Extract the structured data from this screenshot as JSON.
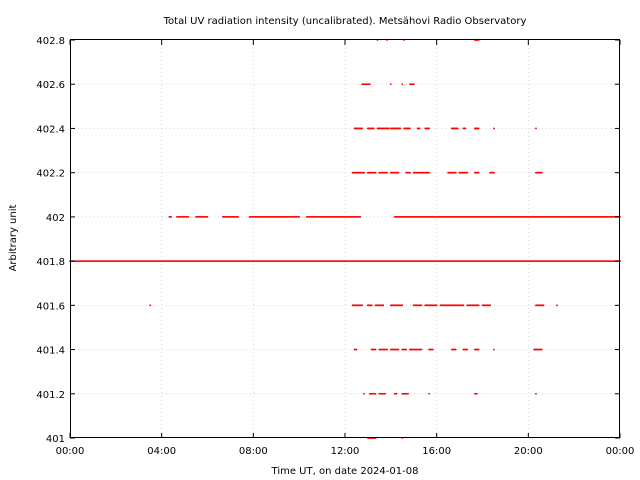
{
  "chart_data": {
    "type": "scatter",
    "title": "Total UV radiation intensity (uncalibrated). Metsähovi Radio Observatory",
    "xlabel": "Time UT, on date 2024-01-08",
    "ylabel": "Arbitrary unit",
    "xlim": [
      "00:00",
      "24:00"
    ],
    "ylim": [
      401,
      402.8
    ],
    "x_ticks": [
      "00:00",
      "04:00",
      "08:00",
      "12:00",
      "16:00",
      "20:00",
      "00:00"
    ],
    "y_ticks": [
      "401",
      "401.2",
      "401.4",
      "401.6",
      "401.8",
      "402",
      "402.2",
      "402.4",
      "402.6",
      "402.8"
    ],
    "grid": true,
    "marker_color": "#ff0000",
    "series": [
      {
        "levels": [
          {
            "y": 401.8,
            "x": [
              [
                "00:00",
                "24:00"
              ]
            ]
          },
          {
            "y": 402.0,
            "x": [
              [
                "04:20",
                "04:25"
              ],
              [
                "04:40",
                "05:10"
              ],
              [
                "05:30",
                "06:00"
              ],
              [
                "06:40",
                "07:20"
              ],
              [
                "07:50",
                "10:00"
              ],
              [
                "10:20",
                "12:40"
              ],
              [
                "14:10",
                "24:00"
              ]
            ]
          },
          {
            "y": 401.6,
            "x": [
              "03:30",
              [
                "12:20",
                "12:45"
              ],
              [
                "13:00",
                "13:10"
              ],
              [
                "13:20",
                "13:40"
              ],
              [
                "14:00",
                "14:30"
              ],
              [
                "15:00",
                "15:20"
              ],
              [
                "15:30",
                "16:00"
              ],
              [
                "16:10",
                "17:10"
              ],
              [
                "17:20",
                "17:50"
              ],
              [
                "18:00",
                "18:20"
              ],
              [
                "20:20",
                "20:40"
              ],
              "21:15"
            ]
          },
          {
            "y": 402.2,
            "x": [
              [
                "12:20",
                "12:50"
              ],
              [
                "13:00",
                "13:20"
              ],
              [
                "13:30",
                "13:50"
              ],
              [
                "14:00",
                "14:20"
              ],
              [
                "14:40",
                "14:50"
              ],
              [
                "15:00",
                "15:40"
              ],
              [
                "16:30",
                "16:50"
              ],
              [
                "17:00",
                "17:20"
              ],
              [
                "17:40",
                "17:50"
              ],
              [
                "18:20",
                "18:30"
              ],
              [
                "20:20",
                "20:35"
              ]
            ]
          },
          {
            "y": 401.4,
            "x": [
              [
                "12:25",
                "12:30"
              ],
              [
                "13:10",
                "13:20"
              ],
              [
                "13:30",
                "13:50"
              ],
              [
                "14:00",
                "14:20"
              ],
              [
                "14:30",
                "14:40"
              ],
              [
                "14:50",
                "15:20"
              ],
              [
                "15:40",
                "15:50"
              ],
              [
                "16:40",
                "16:50"
              ],
              [
                "17:10",
                "17:20"
              ],
              [
                "17:40",
                "17:50"
              ],
              "18:30",
              [
                "20:15",
                "20:35"
              ]
            ]
          },
          {
            "y": 402.4,
            "x": [
              [
                "12:25",
                "12:45"
              ],
              [
                "13:00",
                "13:15"
              ],
              [
                "13:25",
                "13:55"
              ],
              [
                "14:00",
                "14:25"
              ],
              [
                "14:35",
                "14:50"
              ],
              [
                "15:10",
                "15:15"
              ],
              [
                "15:30",
                "15:40"
              ],
              [
                "16:40",
                "16:55"
              ],
              [
                "17:10",
                "17:15"
              ],
              [
                "17:40",
                "17:50"
              ],
              "18:30",
              "20:20"
            ]
          },
          {
            "y": 402.6,
            "x": [
              [
                "12:45",
                "13:05"
              ],
              "14:00",
              "14:30",
              [
                "14:50",
                "15:00"
              ]
            ]
          },
          {
            "y": 401.2,
            "x": [
              "12:50",
              [
                "13:05",
                "13:20"
              ],
              [
                "13:30",
                "13:45"
              ],
              [
                "14:10",
                "14:15"
              ],
              [
                "14:30",
                "14:45"
              ],
              "15:40",
              [
                "17:40",
                "17:45"
              ],
              "20:20"
            ]
          },
          {
            "y": 402.8,
            "x": [
              "13:25",
              "13:50",
              "14:35",
              [
                "17:40",
                "17:50"
              ]
            ]
          },
          {
            "y": 401.0,
            "x": [
              [
                "13:00",
                "13:20"
              ],
              "14:30"
            ]
          }
        ]
      }
    ]
  }
}
